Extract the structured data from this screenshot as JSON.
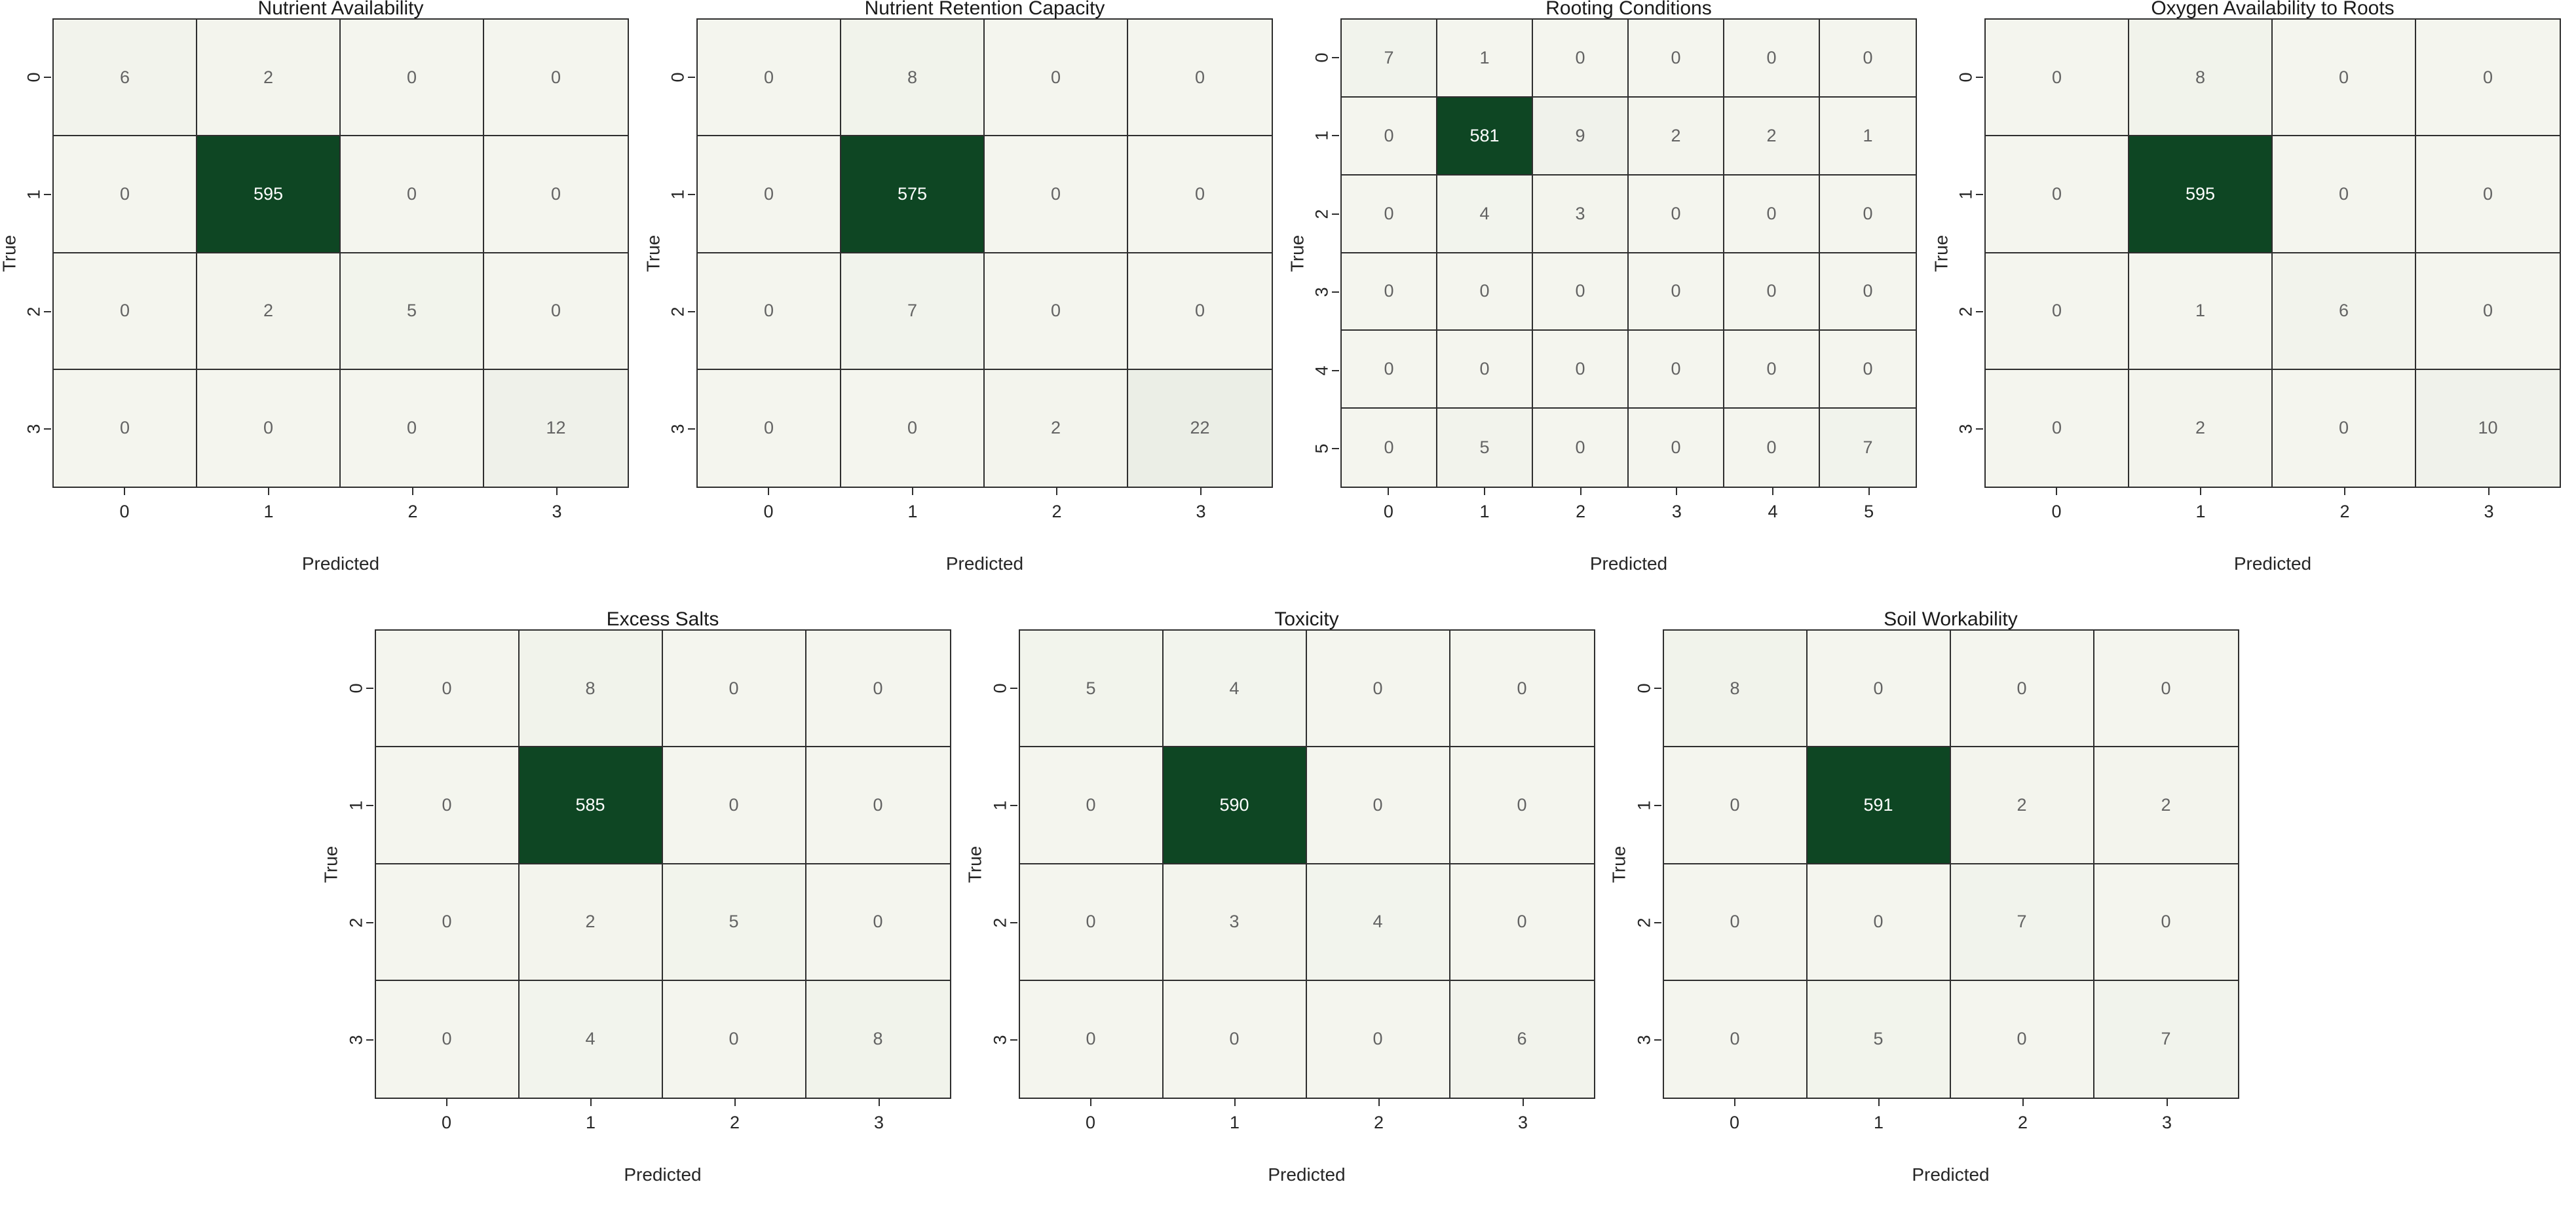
{
  "figure": {
    "background": "#ffffff"
  },
  "colors": {
    "cell_low": "#f4f5ee",
    "cell_high": "#0e4623",
    "grid_line": "#2e2e2e",
    "annotation_light_cell": "#636363",
    "annotation_dark_cell": "#ffffff",
    "axis_text": "#262626",
    "title_text": "#1a1a1a"
  },
  "chart_data": [
    {
      "type": "heatmap",
      "colormap": "Greens",
      "row": "top",
      "title": "Nutrient Availability",
      "xlabel": "Predicted",
      "ylabel": "True",
      "x_ticks": [
        "0",
        "1",
        "2",
        "3"
      ],
      "y_ticks": [
        "0",
        "1",
        "2",
        "3"
      ],
      "matrix": [
        [
          6,
          2,
          0,
          0
        ],
        [
          0,
          595,
          0,
          0
        ],
        [
          0,
          2,
          5,
          0
        ],
        [
          0,
          0,
          0,
          12
        ]
      ]
    },
    {
      "type": "heatmap",
      "colormap": "Greens",
      "row": "top",
      "title": "Nutrient Retention Capacity",
      "xlabel": "Predicted",
      "ylabel": "True",
      "x_ticks": [
        "0",
        "1",
        "2",
        "3"
      ],
      "y_ticks": [
        "0",
        "1",
        "2",
        "3"
      ],
      "matrix": [
        [
          0,
          8,
          0,
          0
        ],
        [
          0,
          575,
          0,
          0
        ],
        [
          0,
          7,
          0,
          0
        ],
        [
          0,
          0,
          2,
          22
        ]
      ]
    },
    {
      "type": "heatmap",
      "colormap": "Greens",
      "row": "top",
      "title": "Rooting Conditions",
      "xlabel": "Predicted",
      "ylabel": "True",
      "x_ticks": [
        "0",
        "1",
        "2",
        "3",
        "4",
        "5"
      ],
      "y_ticks": [
        "0",
        "1",
        "2",
        "3",
        "4",
        "5"
      ],
      "matrix": [
        [
          7,
          1,
          0,
          0,
          0,
          0
        ],
        [
          0,
          581,
          9,
          2,
          2,
          1
        ],
        [
          0,
          4,
          3,
          0,
          0,
          0
        ],
        [
          0,
          0,
          0,
          0,
          0,
          0
        ],
        [
          0,
          0,
          0,
          0,
          0,
          0
        ],
        [
          0,
          5,
          0,
          0,
          0,
          7
        ]
      ]
    },
    {
      "type": "heatmap",
      "colormap": "Greens",
      "row": "top",
      "title": "Oxygen Availability to Roots",
      "xlabel": "Predicted",
      "ylabel": "True",
      "x_ticks": [
        "0",
        "1",
        "2",
        "3"
      ],
      "y_ticks": [
        "0",
        "1",
        "2",
        "3"
      ],
      "matrix": [
        [
          0,
          8,
          0,
          0
        ],
        [
          0,
          595,
          0,
          0
        ],
        [
          0,
          1,
          6,
          0
        ],
        [
          0,
          2,
          0,
          10
        ]
      ]
    },
    {
      "type": "heatmap",
      "colormap": "Greens",
      "row": "bottom",
      "title": "Excess Salts",
      "xlabel": "Predicted",
      "ylabel": "True",
      "x_ticks": [
        "0",
        "1",
        "2",
        "3"
      ],
      "y_ticks": [
        "0",
        "1",
        "2",
        "3"
      ],
      "matrix": [
        [
          0,
          8,
          0,
          0
        ],
        [
          0,
          585,
          0,
          0
        ],
        [
          0,
          2,
          5,
          0
        ],
        [
          0,
          4,
          0,
          8
        ]
      ]
    },
    {
      "type": "heatmap",
      "colormap": "Greens",
      "row": "bottom",
      "title": "Toxicity",
      "xlabel": "Predicted",
      "ylabel": "True",
      "x_ticks": [
        "0",
        "1",
        "2",
        "3"
      ],
      "y_ticks": [
        "0",
        "1",
        "2",
        "3"
      ],
      "matrix": [
        [
          5,
          4,
          0,
          0
        ],
        [
          0,
          590,
          0,
          0
        ],
        [
          0,
          3,
          4,
          0
        ],
        [
          0,
          0,
          0,
          6
        ]
      ]
    },
    {
      "type": "heatmap",
      "colormap": "Greens",
      "row": "bottom",
      "title": "Soil Workability",
      "xlabel": "Predicted",
      "ylabel": "True",
      "x_ticks": [
        "0",
        "1",
        "2",
        "3"
      ],
      "y_ticks": [
        "0",
        "1",
        "2",
        "3"
      ],
      "matrix": [
        [
          8,
          0,
          0,
          0
        ],
        [
          0,
          591,
          2,
          2
        ],
        [
          0,
          0,
          7,
          0
        ],
        [
          0,
          5,
          0,
          7
        ]
      ]
    }
  ]
}
